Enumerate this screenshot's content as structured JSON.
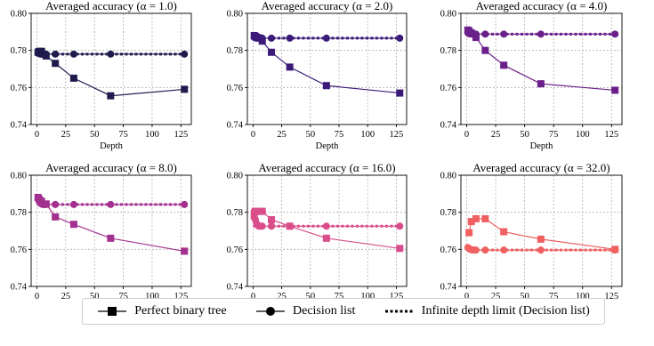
{
  "legend": {
    "items": [
      {
        "label": "Perfect binary tree",
        "icon": "square-marker-line-icon"
      },
      {
        "label": "Decision list",
        "icon": "circle-marker-line-icon"
      },
      {
        "label": "Infinite depth limit (Decision list)",
        "icon": "dotted-line-icon"
      }
    ]
  },
  "chart_data": [
    {
      "type": "line",
      "title": "Averaged accuracy (α = 1.0)",
      "xlabel": "Depth",
      "ylabel": "",
      "xlim": [
        -5,
        134
      ],
      "ylim": [
        0.74,
        0.8
      ],
      "xticks": [
        0,
        25,
        50,
        75,
        100,
        125
      ],
      "yticks": [
        "0.74",
        "0.76",
        "0.78",
        "0.80"
      ],
      "color": "#1f1c4d",
      "series": [
        {
          "name": "Perfect binary tree",
          "marker": "square",
          "x": [
            1,
            2,
            4,
            8,
            16,
            32,
            64,
            128
          ],
          "y": [
            0.779,
            0.7795,
            0.7795,
            0.777,
            0.773,
            0.765,
            0.7555,
            0.759
          ]
        },
        {
          "name": "Decision list",
          "marker": "circle",
          "x": [
            1,
            2,
            3,
            4,
            5,
            6,
            7,
            8,
            16,
            32,
            64,
            128
          ],
          "y": [
            0.7785,
            0.7785,
            0.778,
            0.778,
            0.778,
            0.778,
            0.778,
            0.778,
            0.778,
            0.778,
            0.778,
            0.778
          ]
        },
        {
          "name": "Infinite depth limit (Decision list)",
          "marker": "none",
          "x": [
            0,
            128
          ],
          "y": [
            0.778,
            0.778
          ]
        }
      ]
    },
    {
      "type": "line",
      "title": "Averaged accuracy (α = 2.0)",
      "xlabel": "Depth",
      "ylabel": "",
      "xlim": [
        -5,
        134
      ],
      "ylim": [
        0.74,
        0.8
      ],
      "xticks": [
        0,
        25,
        50,
        75,
        100,
        125
      ],
      "yticks": [
        "0.74",
        "0.76",
        "0.78",
        "0.80"
      ],
      "color": "#3b1a7a",
      "series": [
        {
          "name": "Perfect binary tree",
          "marker": "square",
          "x": [
            1,
            2,
            4,
            8,
            16,
            32,
            64,
            128
          ],
          "y": [
            0.788,
            0.7875,
            0.787,
            0.785,
            0.779,
            0.771,
            0.761,
            0.757
          ]
        },
        {
          "name": "Decision list",
          "marker": "circle",
          "x": [
            1,
            2,
            3,
            4,
            5,
            6,
            7,
            8,
            16,
            32,
            64,
            128
          ],
          "y": [
            0.787,
            0.7868,
            0.7866,
            0.7866,
            0.7866,
            0.7866,
            0.7866,
            0.7866,
            0.7866,
            0.7866,
            0.7866,
            0.7866
          ]
        },
        {
          "name": "Infinite depth limit (Decision list)",
          "marker": "none",
          "x": [
            0,
            128
          ],
          "y": [
            0.7866,
            0.7866
          ]
        }
      ]
    },
    {
      "type": "line",
      "title": "Averaged accuracy (α = 4.0)",
      "xlabel": "Depth",
      "ylabel": "",
      "xlim": [
        -5,
        134
      ],
      "ylim": [
        0.74,
        0.8
      ],
      "xticks": [
        0,
        25,
        50,
        75,
        100,
        125
      ],
      "yticks": [
        "0.74",
        "0.76",
        "0.78",
        "0.80"
      ],
      "color": "#6a1f8a",
      "series": [
        {
          "name": "Perfect binary tree",
          "marker": "square",
          "x": [
            1,
            2,
            4,
            8,
            16,
            32,
            64,
            128
          ],
          "y": [
            0.791,
            0.7905,
            0.7895,
            0.787,
            0.78,
            0.772,
            0.762,
            0.7585
          ]
        },
        {
          "name": "Decision list",
          "marker": "circle",
          "x": [
            1,
            2,
            3,
            4,
            5,
            6,
            7,
            8,
            16,
            32,
            64,
            128
          ],
          "y": [
            0.7895,
            0.789,
            0.789,
            0.7888,
            0.7888,
            0.7888,
            0.7888,
            0.7888,
            0.7888,
            0.7888,
            0.7888,
            0.7888
          ]
        },
        {
          "name": "Infinite depth limit (Decision list)",
          "marker": "none",
          "x": [
            0,
            128
          ],
          "y": [
            0.7888,
            0.7888
          ]
        }
      ]
    },
    {
      "type": "line",
      "title": "Averaged accuracy (α = 8.0)",
      "xlabel": "Depth",
      "ylabel": "",
      "xlim": [
        -5,
        134
      ],
      "ylim": [
        0.74,
        0.8
      ],
      "xticks": [
        0,
        25,
        50,
        75,
        100,
        125
      ],
      "yticks": [
        "0.74",
        "0.76",
        "0.78",
        "0.80"
      ],
      "color": "#a3308f",
      "series": [
        {
          "name": "Perfect binary tree",
          "marker": "square",
          "x": [
            1,
            2,
            4,
            8,
            16,
            32,
            64,
            128
          ],
          "y": [
            0.788,
            0.787,
            0.786,
            0.7845,
            0.7775,
            0.7735,
            0.766,
            0.759
          ]
        },
        {
          "name": "Decision list",
          "marker": "circle",
          "x": [
            1,
            2,
            3,
            4,
            5,
            6,
            7,
            8,
            16,
            32,
            64,
            128
          ],
          "y": [
            0.787,
            0.786,
            0.785,
            0.7845,
            0.7842,
            0.7842,
            0.7842,
            0.7842,
            0.7842,
            0.7842,
            0.7842,
            0.7842
          ]
        },
        {
          "name": "Infinite depth limit (Decision list)",
          "marker": "none",
          "x": [
            0,
            128
          ],
          "y": [
            0.7842,
            0.7842
          ]
        }
      ]
    },
    {
      "type": "line",
      "title": "Averaged accuracy (α = 16.0)",
      "xlabel": "Depth",
      "ylabel": "",
      "xlim": [
        -5,
        134
      ],
      "ylim": [
        0.74,
        0.8
      ],
      "xticks": [
        0,
        25,
        50,
        75,
        100,
        125
      ],
      "yticks": [
        "0.74",
        "0.76",
        "0.78",
        "0.80"
      ],
      "color": "#d94d8a",
      "series": [
        {
          "name": "Perfect binary tree",
          "marker": "square",
          "x": [
            1,
            2,
            4,
            8,
            16,
            32,
            64,
            128
          ],
          "y": [
            0.778,
            0.7805,
            0.7805,
            0.7805,
            0.776,
            0.7725,
            0.766,
            0.7605
          ]
        },
        {
          "name": "Decision list",
          "marker": "circle",
          "x": [
            1,
            2,
            3,
            4,
            5,
            6,
            7,
            8,
            16,
            32,
            64,
            128
          ],
          "y": [
            0.7805,
            0.776,
            0.774,
            0.773,
            0.7725,
            0.7725,
            0.7725,
            0.7725,
            0.7725,
            0.7725,
            0.7725,
            0.7725
          ]
        },
        {
          "name": "Infinite depth limit (Decision list)",
          "marker": "none",
          "x": [
            0,
            128
          ],
          "y": [
            0.7725,
            0.7725
          ]
        }
      ]
    },
    {
      "type": "line",
      "title": "Averaged accuracy (α = 32.0)",
      "xlabel": "Depth",
      "ylabel": "",
      "xlim": [
        -5,
        134
      ],
      "ylim": [
        0.74,
        0.8
      ],
      "xticks": [
        0,
        25,
        50,
        75,
        100,
        125
      ],
      "yticks": [
        "0.74",
        "0.76",
        "0.78",
        "0.80"
      ],
      "color": "#f06060",
      "series": [
        {
          "name": "Perfect binary tree",
          "marker": "square",
          "x": [
            2,
            4,
            8,
            16,
            32,
            64,
            128
          ],
          "y": [
            0.769,
            0.775,
            0.7765,
            0.7765,
            0.7695,
            0.7655,
            0.76
          ]
        },
        {
          "name": "Decision list",
          "marker": "circle",
          "x": [
            1,
            2,
            3,
            4,
            5,
            6,
            7,
            8,
            16,
            32,
            64,
            128
          ],
          "y": [
            0.761,
            0.7605,
            0.76,
            0.7598,
            0.7596,
            0.7596,
            0.7596,
            0.7596,
            0.7596,
            0.7596,
            0.7596,
            0.7596
          ]
        },
        {
          "name": "Infinite depth limit (Decision list)",
          "marker": "none",
          "x": [
            0,
            128
          ],
          "y": [
            0.7596,
            0.7596
          ]
        }
      ]
    }
  ]
}
